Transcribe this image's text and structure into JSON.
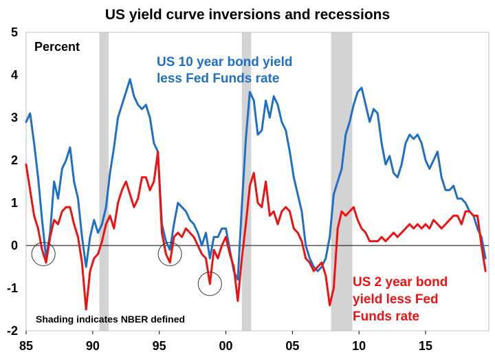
{
  "chart_data": {
    "type": "line",
    "title": "US yield curve inversions and recessions",
    "ylabel": "Percent",
    "xlabel": "",
    "xlim": [
      1985,
      2019.75
    ],
    "ylim": [
      -2,
      5
    ],
    "xticks": [
      1985,
      1990,
      1995,
      2000,
      2005,
      2010,
      2015
    ],
    "xtick_labels": [
      "85",
      "90",
      "95",
      "00",
      "05",
      "10",
      "15"
    ],
    "yticks": [
      -2,
      -1,
      0,
      1,
      2,
      3,
      4,
      5
    ],
    "ytick_labels": [
      "-2",
      "-1",
      "0",
      "1",
      "2",
      "3",
      "4",
      "5"
    ],
    "recessions": [
      [
        1990.5,
        1991.2
      ],
      [
        2001.2,
        2001.9
      ],
      [
        2007.9,
        2009.5
      ]
    ],
    "recession_note": "Shading indicates NBER defined",
    "inversion_circles": [
      {
        "x": 1986.3,
        "y": -0.2
      },
      {
        "x": 1995.8,
        "y": -0.2
      },
      {
        "x": 1998.8,
        "y": -0.9
      }
    ],
    "colors": {
      "series_10y": "#1f6fc5",
      "series_2y": "#ee1111",
      "recession_shading": "#d3d3d3"
    },
    "series": [
      {
        "name": "US 10 year bond yield less Fed Funds rate",
        "label_lines": [
          "US 10 year bond yield",
          "less Fed Funds rate"
        ],
        "x": [
          1985.0,
          1985.3,
          1985.6,
          1985.9,
          1986.2,
          1986.5,
          1986.8,
          1987.1,
          1987.4,
          1987.7,
          1988.0,
          1988.3,
          1988.6,
          1988.9,
          1989.2,
          1989.5,
          1989.8,
          1990.1,
          1990.4,
          1990.7,
          1991.0,
          1991.3,
          1991.6,
          1991.9,
          1992.2,
          1992.5,
          1992.8,
          1993.1,
          1993.4,
          1993.7,
          1994.0,
          1994.3,
          1994.6,
          1994.9,
          1995.2,
          1995.5,
          1995.8,
          1996.1,
          1996.4,
          1996.7,
          1997.0,
          1997.3,
          1997.6,
          1997.9,
          1998.2,
          1998.5,
          1998.8,
          1999.1,
          1999.4,
          1999.7,
          2000.0,
          2000.3,
          2000.6,
          2000.9,
          2001.2,
          2001.5,
          2001.8,
          2002.1,
          2002.4,
          2002.7,
          2003.0,
          2003.3,
          2003.6,
          2003.9,
          2004.2,
          2004.5,
          2004.8,
          2005.1,
          2005.4,
          2005.7,
          2006.0,
          2006.3,
          2006.6,
          2006.9,
          2007.2,
          2007.5,
          2007.8,
          2008.1,
          2008.4,
          2008.7,
          2009.0,
          2009.3,
          2009.6,
          2009.9,
          2010.2,
          2010.5,
          2010.8,
          2011.1,
          2011.4,
          2011.7,
          2012.0,
          2012.3,
          2012.6,
          2012.9,
          2013.2,
          2013.5,
          2013.8,
          2014.1,
          2014.4,
          2014.7,
          2015.0,
          2015.3,
          2015.6,
          2015.9,
          2016.2,
          2016.5,
          2016.8,
          2017.1,
          2017.4,
          2017.7,
          2018.0,
          2018.3,
          2018.6,
          2018.9,
          2019.2,
          2019.5
        ],
        "values": [
          2.9,
          3.1,
          2.4,
          1.6,
          0.6,
          -0.3,
          0.3,
          1.5,
          1.1,
          1.8,
          2.0,
          2.3,
          1.5,
          1.1,
          0.2,
          -0.5,
          0.2,
          0.6,
          0.3,
          0.5,
          0.9,
          1.7,
          2.3,
          3.0,
          3.3,
          3.6,
          3.9,
          3.5,
          3.3,
          3.2,
          3.3,
          3.0,
          2.4,
          2.2,
          0.5,
          0.1,
          -0.1,
          0.5,
          1.0,
          0.9,
          0.8,
          0.6,
          0.5,
          0.3,
          0.0,
          0.3,
          -0.3,
          0.2,
          0.2,
          0.4,
          0.4,
          -0.1,
          -0.6,
          -0.8,
          0.9,
          2.5,
          3.6,
          3.4,
          2.6,
          2.7,
          3.4,
          3.0,
          3.5,
          3.3,
          2.9,
          2.7,
          2.2,
          1.6,
          1.2,
          0.8,
          0.0,
          -0.3,
          -0.5,
          -0.6,
          -0.5,
          -0.3,
          0.2,
          1.2,
          1.5,
          1.8,
          2.6,
          2.9,
          3.3,
          3.6,
          3.7,
          3.3,
          2.9,
          3.2,
          3.1,
          2.4,
          1.9,
          2.1,
          1.7,
          1.6,
          1.9,
          2.4,
          2.6,
          2.5,
          2.6,
          2.4,
          2.0,
          1.8,
          2.0,
          2.2,
          1.6,
          1.3,
          1.3,
          1.4,
          1.1,
          1.1,
          1.0,
          0.8,
          0.7,
          0.4,
          0.2,
          -0.3
        ]
      },
      {
        "name": "US 2 year bond yield less Fed Funds rate",
        "label_lines": [
          "US 2 year bond",
          "yield less Fed",
          "Funds rate"
        ],
        "x": [
          1985.0,
          1985.3,
          1985.6,
          1985.9,
          1986.2,
          1986.5,
          1986.8,
          1987.1,
          1987.4,
          1987.7,
          1988.0,
          1988.3,
          1988.6,
          1988.9,
          1989.2,
          1989.5,
          1989.8,
          1990.1,
          1990.4,
          1990.7,
          1991.0,
          1991.3,
          1991.6,
          1991.9,
          1992.2,
          1992.5,
          1992.8,
          1993.1,
          1993.4,
          1993.7,
          1994.0,
          1994.3,
          1994.6,
          1994.9,
          1995.2,
          1995.5,
          1995.8,
          1996.1,
          1996.4,
          1996.7,
          1997.0,
          1997.3,
          1997.6,
          1997.9,
          1998.2,
          1998.5,
          1998.8,
          1999.1,
          1999.4,
          1999.7,
          2000.0,
          2000.3,
          2000.6,
          2000.9,
          2001.2,
          2001.5,
          2001.8,
          2002.1,
          2002.4,
          2002.7,
          2003.0,
          2003.3,
          2003.6,
          2003.9,
          2004.2,
          2004.5,
          2004.8,
          2005.1,
          2005.4,
          2005.7,
          2006.0,
          2006.3,
          2006.6,
          2006.9,
          2007.2,
          2007.5,
          2007.8,
          2008.1,
          2008.4,
          2008.7,
          2009.0,
          2009.3,
          2009.6,
          2009.9,
          2010.2,
          2010.5,
          2010.8,
          2011.1,
          2011.4,
          2011.7,
          2012.0,
          2012.3,
          2012.6,
          2012.9,
          2013.2,
          2013.5,
          2013.8,
          2014.1,
          2014.4,
          2014.7,
          2015.0,
          2015.3,
          2015.6,
          2015.9,
          2016.2,
          2016.5,
          2016.8,
          2017.1,
          2017.4,
          2017.7,
          2018.0,
          2018.3,
          2018.6,
          2018.9,
          2019.2,
          2019.5
        ],
        "values": [
          1.9,
          1.3,
          0.7,
          0.4,
          -0.1,
          -0.4,
          0.2,
          0.6,
          0.5,
          0.8,
          0.9,
          0.9,
          0.5,
          0.2,
          -0.4,
          -1.5,
          -0.6,
          -0.3,
          -0.2,
          0.1,
          0.5,
          0.7,
          0.4,
          1.0,
          1.3,
          1.5,
          1.2,
          0.9,
          1.1,
          1.6,
          1.6,
          1.3,
          1.5,
          2.2,
          0.3,
          -0.2,
          -0.4,
          0.2,
          0.3,
          0.2,
          0.4,
          0.3,
          0.2,
          0.0,
          -0.2,
          -0.3,
          -0.9,
          -0.1,
          -0.3,
          0.0,
          0.2,
          -0.2,
          -0.5,
          -1.3,
          -0.3,
          0.5,
          1.4,
          1.7,
          1.0,
          0.9,
          1.5,
          0.7,
          0.8,
          0.5,
          0.8,
          0.9,
          0.8,
          0.4,
          0.3,
          0.1,
          -0.3,
          -0.4,
          -0.6,
          -0.5,
          -0.4,
          -0.7,
          -1.4,
          -1.0,
          0.4,
          0.8,
          0.7,
          0.8,
          0.9,
          0.6,
          0.4,
          0.3,
          0.1,
          0.1,
          0.1,
          0.2,
          0.1,
          0.2,
          0.3,
          0.2,
          0.3,
          0.4,
          0.5,
          0.4,
          0.5,
          0.4,
          0.5,
          0.4,
          0.6,
          0.5,
          0.4,
          0.5,
          0.6,
          0.7,
          0.7,
          0.5,
          0.8,
          0.8,
          0.7,
          0.7,
          0.0,
          -0.6
        ]
      }
    ]
  }
}
